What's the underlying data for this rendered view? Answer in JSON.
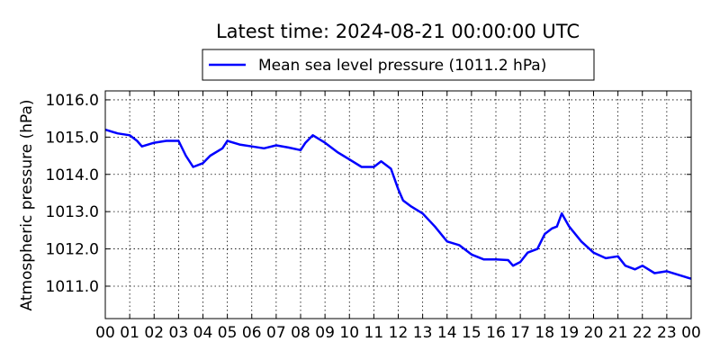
{
  "chart_data": {
    "type": "line",
    "title": "Latest time: 2024-08-21 00:00:00 UTC",
    "ylabel": "Atmospheric pressure (hPa)",
    "xlabel": "",
    "xlim": [
      0,
      24
    ],
    "ylim": [
      1010.13,
      1016.24
    ],
    "grid": true,
    "legend_placement": "top-center, above plot",
    "x_tick_values": [
      0,
      1,
      2,
      3,
      4,
      5,
      6,
      7,
      8,
      9,
      10,
      11,
      12,
      13,
      14,
      15,
      16,
      17,
      18,
      19,
      20,
      21,
      22,
      23,
      24
    ],
    "x_tick_labels": [
      "00",
      "01",
      "02",
      "03",
      "04",
      "05",
      "06",
      "07",
      "08",
      "09",
      "10",
      "11",
      "12",
      "13",
      "14",
      "15",
      "16",
      "17",
      "18",
      "19",
      "20",
      "21",
      "22",
      "23",
      "00"
    ],
    "y_tick_values": [
      1011,
      1012,
      1013,
      1014,
      1015,
      1016
    ],
    "y_tick_labels": [
      "1011.0",
      "1012.0",
      "1013.0",
      "1014.0",
      "1015.0",
      "1016.0"
    ],
    "series": [
      {
        "name": "Mean sea level pressure (1011.2 hPa)",
        "color": "#0000ff",
        "x": [
          0,
          0.5,
          1,
          1.3,
          1.5,
          2,
          2.5,
          3,
          3.3,
          3.6,
          4,
          4.3,
          4.8,
          5,
          5.5,
          6,
          6.5,
          7,
          7.5,
          8,
          8.2,
          8.5,
          9,
          9.5,
          10,
          10.5,
          11,
          11.3,
          11.7,
          12,
          12.2,
          12.5,
          13,
          13.5,
          14,
          14.5,
          15,
          15.5,
          16,
          16.5,
          16.7,
          17,
          17.3,
          17.7,
          18,
          18.3,
          18.5,
          18.7,
          19,
          19.5,
          20,
          20.5,
          21,
          21.3,
          21.7,
          22,
          22.5,
          23,
          23.5,
          24
        ],
        "y": [
          1015.2,
          1015.1,
          1015.05,
          1014.9,
          1014.75,
          1014.85,
          1014.9,
          1014.9,
          1014.5,
          1014.2,
          1014.3,
          1014.5,
          1014.7,
          1014.9,
          1014.8,
          1014.75,
          1014.7,
          1014.78,
          1014.72,
          1014.65,
          1014.85,
          1015.05,
          1014.85,
          1014.6,
          1014.4,
          1014.2,
          1014.2,
          1014.35,
          1014.15,
          1013.6,
          1013.3,
          1013.15,
          1012.95,
          1012.6,
          1012.2,
          1012.1,
          1011.85,
          1011.72,
          1011.72,
          1011.7,
          1011.55,
          1011.65,
          1011.9,
          1012.0,
          1012.4,
          1012.55,
          1012.6,
          1012.95,
          1012.6,
          1012.2,
          1011.9,
          1011.75,
          1011.8,
          1011.55,
          1011.45,
          1011.55,
          1011.35,
          1011.4,
          1011.3,
          1011.2
        ]
      }
    ]
  }
}
